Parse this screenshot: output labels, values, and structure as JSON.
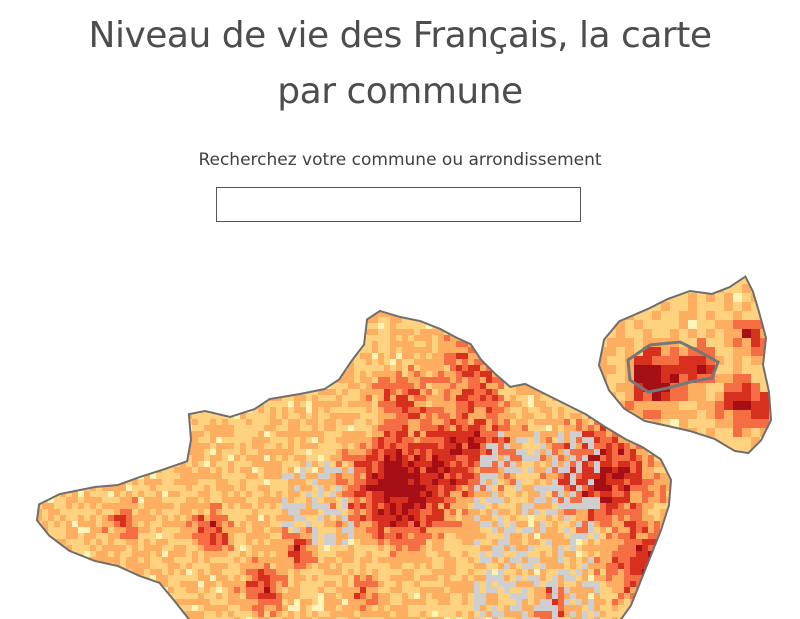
{
  "page": {
    "title": "Niveau de vie des Français, la carte par commune"
  },
  "search": {
    "label": "Recherchez votre commune ou arrondissement",
    "value": "",
    "placeholder": ""
  },
  "map": {
    "palette": {
      "lowest": "#fff4b8",
      "low": "#ffd27f",
      "mid": "#fdae61",
      "high": "#f46d43",
      "higher": "#d7301f",
      "highest": "#a50f15",
      "no_data": "#cfcfcf",
      "border": "#6e6e6e"
    }
  }
}
